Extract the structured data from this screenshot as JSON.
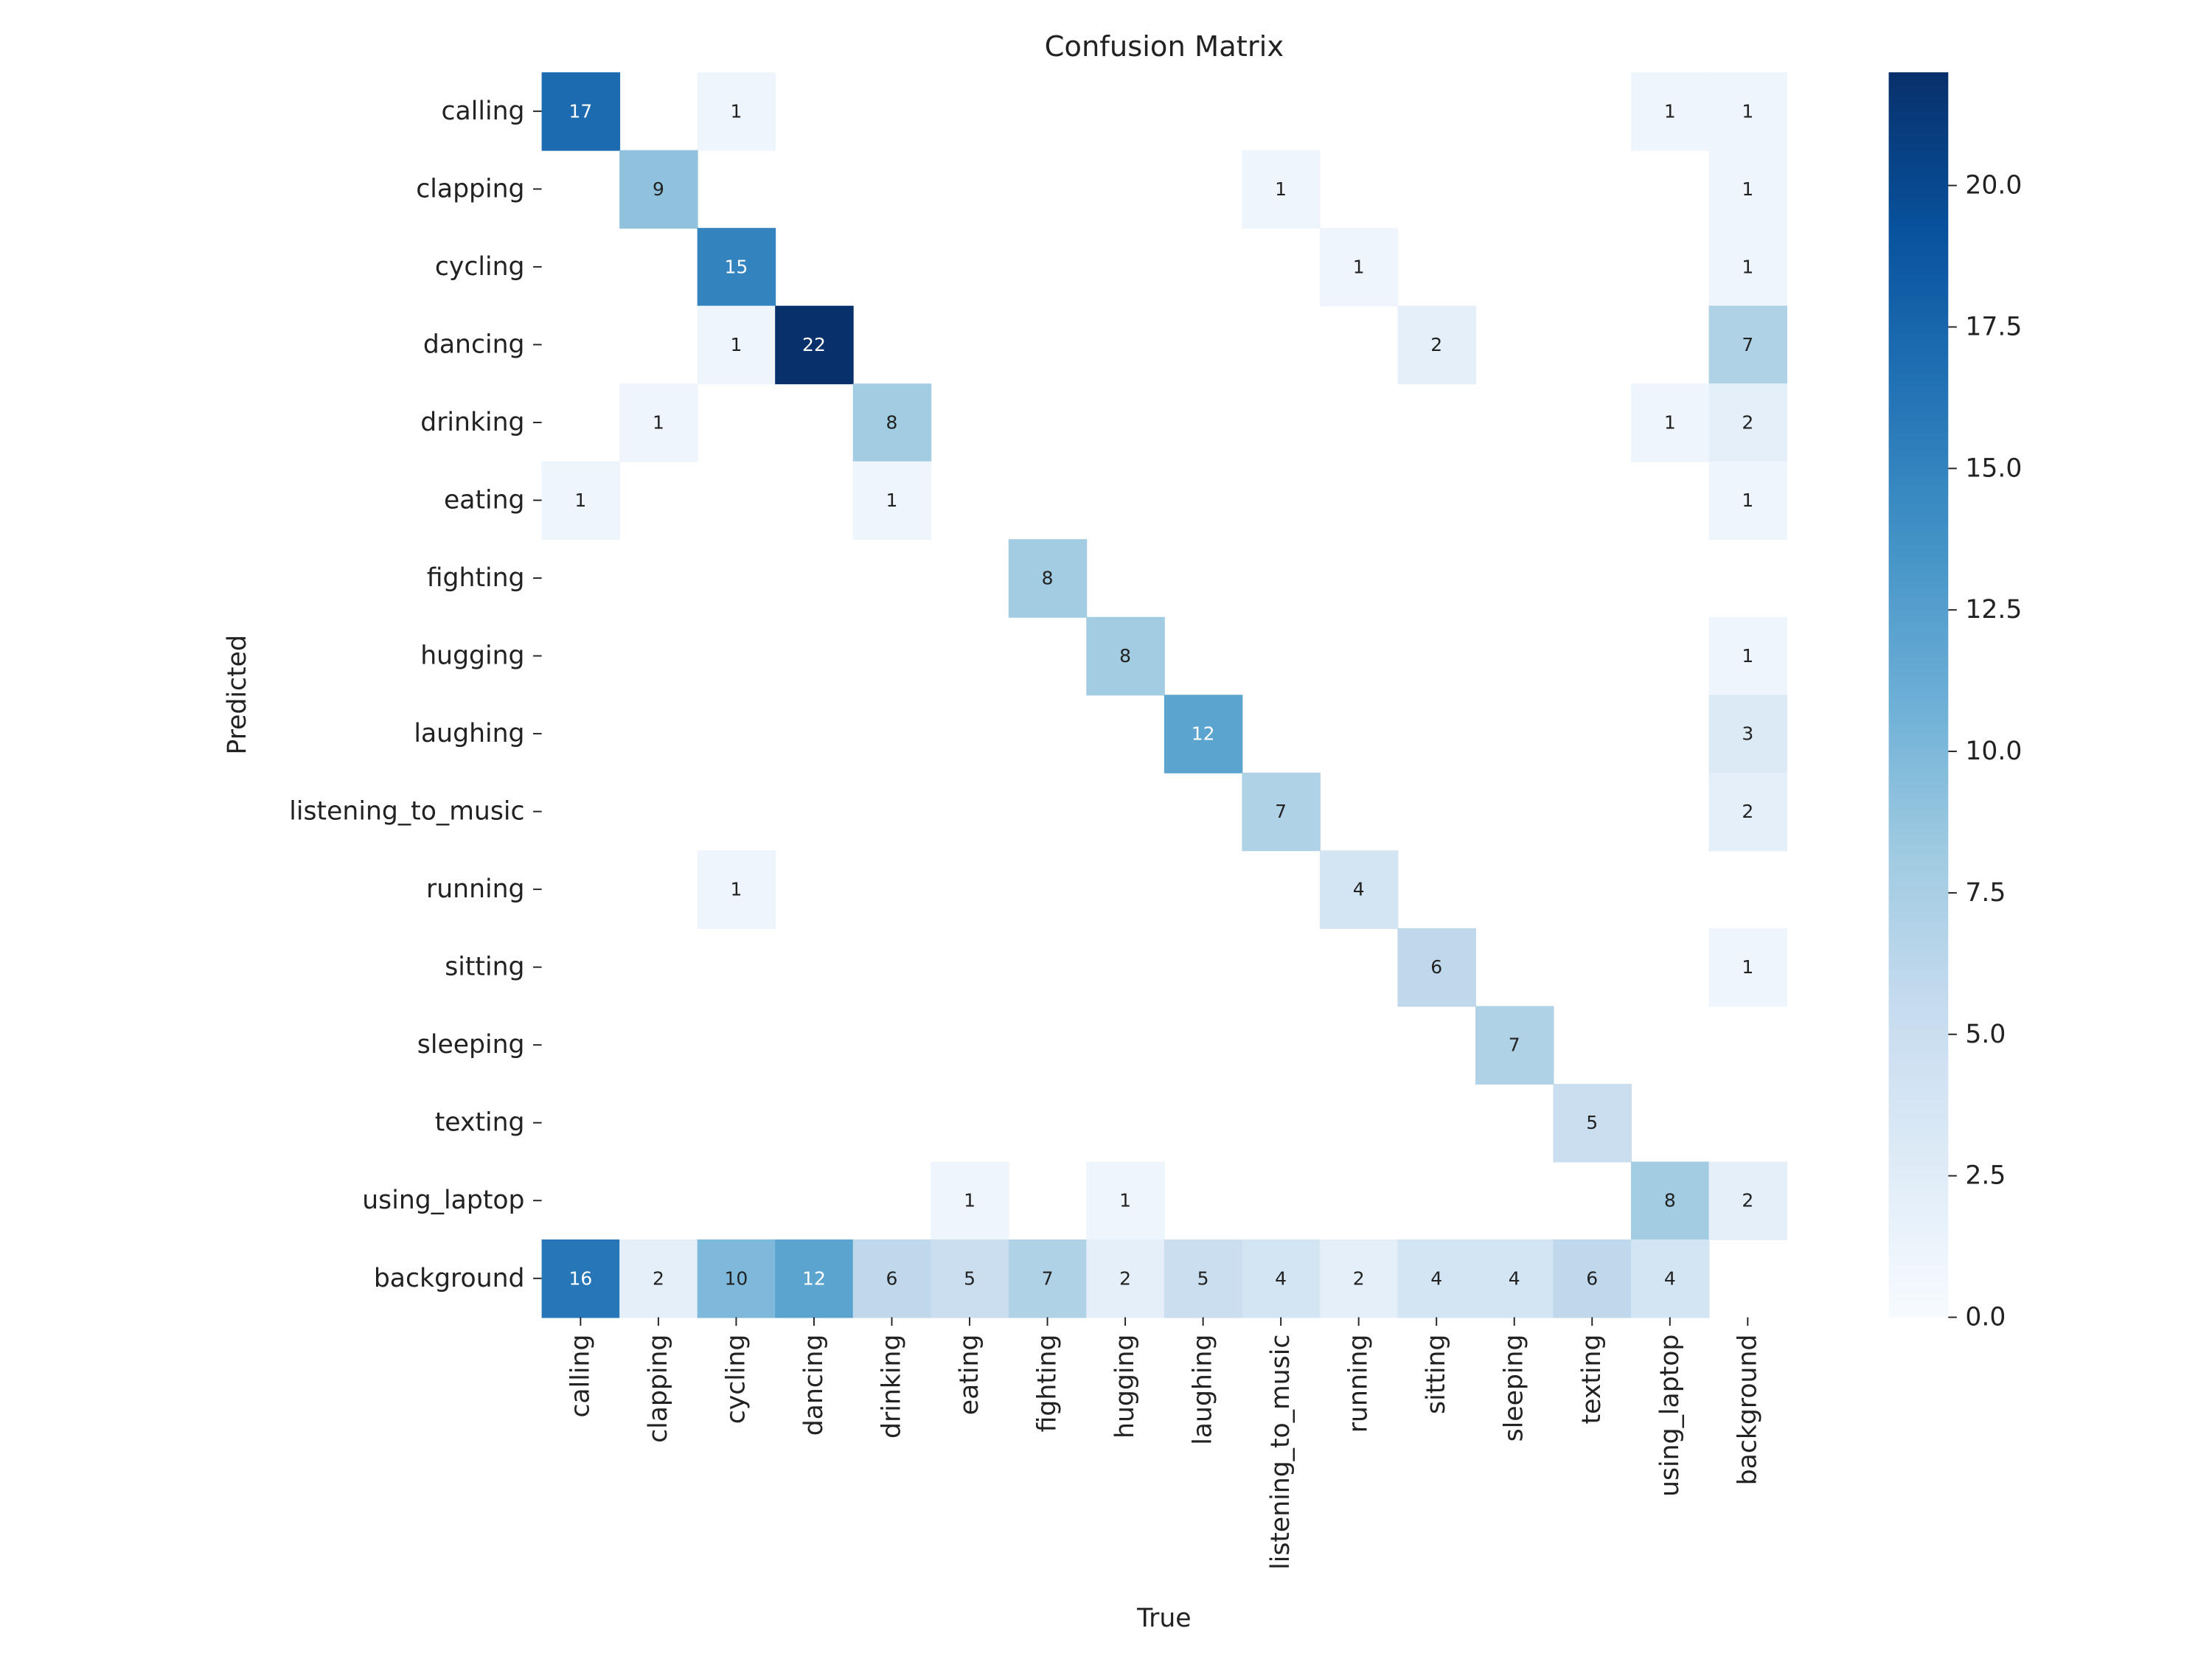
{
  "chart_data": {
    "type": "heatmap",
    "title": "Confusion Matrix",
    "x_label": "True",
    "y_label": "Predicted",
    "categories": [
      "calling",
      "clapping",
      "cycling",
      "dancing",
      "drinking",
      "eating",
      "fighting",
      "hugging",
      "laughing",
      "listening_to_music",
      "running",
      "sitting",
      "sleeping",
      "texting",
      "using_laptop",
      "background"
    ],
    "rows": [
      "calling",
      "clapping",
      "cycling",
      "dancing",
      "drinking",
      "eating",
      "fighting",
      "hugging",
      "laughing",
      "listening_to_music",
      "running",
      "sitting",
      "sleeping",
      "texting",
      "using_laptop",
      "background"
    ],
    "values": [
      [
        17,
        null,
        1,
        null,
        null,
        null,
        null,
        null,
        null,
        null,
        null,
        null,
        null,
        null,
        1,
        1
      ],
      [
        null,
        9,
        null,
        null,
        null,
        null,
        null,
        null,
        null,
        1,
        null,
        null,
        null,
        null,
        null,
        1
      ],
      [
        null,
        null,
        15,
        null,
        null,
        null,
        null,
        null,
        null,
        null,
        1,
        null,
        null,
        null,
        null,
        1
      ],
      [
        null,
        null,
        1,
        22,
        null,
        null,
        null,
        null,
        null,
        null,
        null,
        2,
        null,
        null,
        null,
        7
      ],
      [
        null,
        1,
        null,
        null,
        8,
        null,
        null,
        null,
        null,
        null,
        null,
        null,
        null,
        null,
        1,
        2
      ],
      [
        1,
        null,
        null,
        null,
        1,
        null,
        null,
        null,
        null,
        null,
        null,
        null,
        null,
        null,
        null,
        1
      ],
      [
        null,
        null,
        null,
        null,
        null,
        null,
        8,
        null,
        null,
        null,
        null,
        null,
        null,
        null,
        null,
        null
      ],
      [
        null,
        null,
        null,
        null,
        null,
        null,
        null,
        8,
        null,
        null,
        null,
        null,
        null,
        null,
        null,
        1
      ],
      [
        null,
        null,
        null,
        null,
        null,
        null,
        null,
        null,
        12,
        null,
        null,
        null,
        null,
        null,
        null,
        3
      ],
      [
        null,
        null,
        null,
        null,
        null,
        null,
        null,
        null,
        null,
        7,
        null,
        null,
        null,
        null,
        null,
        2
      ],
      [
        null,
        null,
        1,
        null,
        null,
        null,
        null,
        null,
        null,
        null,
        4,
        null,
        null,
        null,
        null,
        null
      ],
      [
        null,
        null,
        null,
        null,
        null,
        null,
        null,
        null,
        null,
        null,
        null,
        6,
        null,
        null,
        null,
        1
      ],
      [
        null,
        null,
        null,
        null,
        null,
        null,
        null,
        null,
        null,
        null,
        null,
        null,
        7,
        null,
        null,
        null
      ],
      [
        null,
        null,
        null,
        null,
        null,
        null,
        null,
        null,
        null,
        null,
        null,
        null,
        null,
        5,
        null,
        null
      ],
      [
        null,
        null,
        null,
        null,
        null,
        1,
        null,
        1,
        null,
        null,
        null,
        null,
        null,
        null,
        8,
        2
      ],
      [
        16,
        2,
        10,
        12,
        6,
        5,
        7,
        2,
        5,
        4,
        2,
        4,
        4,
        6,
        4,
        null
      ]
    ],
    "colormap": [
      "#f7fbff",
      "#deebf7",
      "#c6dbef",
      "#9ecae1",
      "#6baed6",
      "#4292c6",
      "#2171b5",
      "#08519c",
      "#08306b"
    ],
    "clim": [
      0,
      22
    ],
    "cticks": [
      {
        "value": 0,
        "label": "0.0"
      },
      {
        "value": 2.5,
        "label": "2.5"
      },
      {
        "value": 5,
        "label": "5.0"
      },
      {
        "value": 7.5,
        "label": "7.5"
      },
      {
        "value": 10,
        "label": "10.0"
      },
      {
        "value": 12.5,
        "label": "12.5"
      },
      {
        "value": 15,
        "label": "15.0"
      },
      {
        "value": 17.5,
        "label": "17.5"
      },
      {
        "value": 20,
        "label": "20.0"
      }
    ]
  }
}
